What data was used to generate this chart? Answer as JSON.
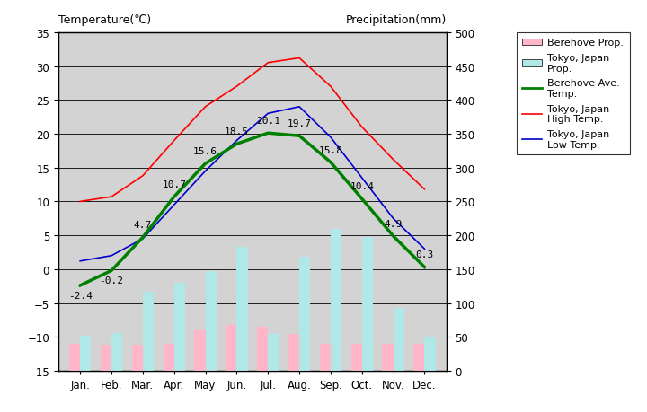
{
  "months": [
    "Jan.",
    "Feb.",
    "Mar.",
    "Apr.",
    "May",
    "Jun.",
    "Jul.",
    "Aug.",
    "Sep.",
    "Oct.",
    "Nov.",
    "Dec."
  ],
  "berehove_avg_temp": [
    -2.4,
    -0.2,
    4.7,
    10.7,
    15.6,
    18.5,
    20.1,
    19.7,
    15.8,
    10.4,
    4.9,
    0.3
  ],
  "tokyo_high_temp": [
    10.0,
    10.7,
    13.8,
    19.0,
    24.0,
    27.0,
    30.5,
    31.2,
    27.0,
    21.0,
    16.2,
    11.8
  ],
  "tokyo_low_temp": [
    1.2,
    2.0,
    4.5,
    9.5,
    14.5,
    19.0,
    23.0,
    24.0,
    19.5,
    13.5,
    7.5,
    3.0
  ],
  "berehove_precip": [
    40,
    38,
    38,
    40,
    60,
    68,
    65,
    55,
    40,
    40,
    40,
    40
  ],
  "tokyo_precip": [
    52,
    56,
    117,
    130,
    147,
    183,
    54,
    168,
    210,
    198,
    93,
    51
  ],
  "temp_min": -15,
  "temp_max": 35,
  "temp_step": 5,
  "precip_min": 0,
  "precip_max": 500,
  "precip_step": 50,
  "bg_color": "#d3d3d3",
  "berehove_precip_color": "#ffb6c8",
  "tokyo_precip_color": "#b0e8e8",
  "berehove_avg_color": "#008000",
  "tokyo_high_color": "#ff0000",
  "tokyo_low_color": "#0000cd",
  "title_left": "Temperature(℃)",
  "title_right": "Precipitation(mm)",
  "legend_labels": [
    "Berehove Prop.",
    "Tokyo, Japan\nProp.",
    "Berehove Ave.\nTemp.",
    "Tokyo, Japan\nHigh Temp.",
    "Tokyo, Japan\nLow Temp."
  ]
}
